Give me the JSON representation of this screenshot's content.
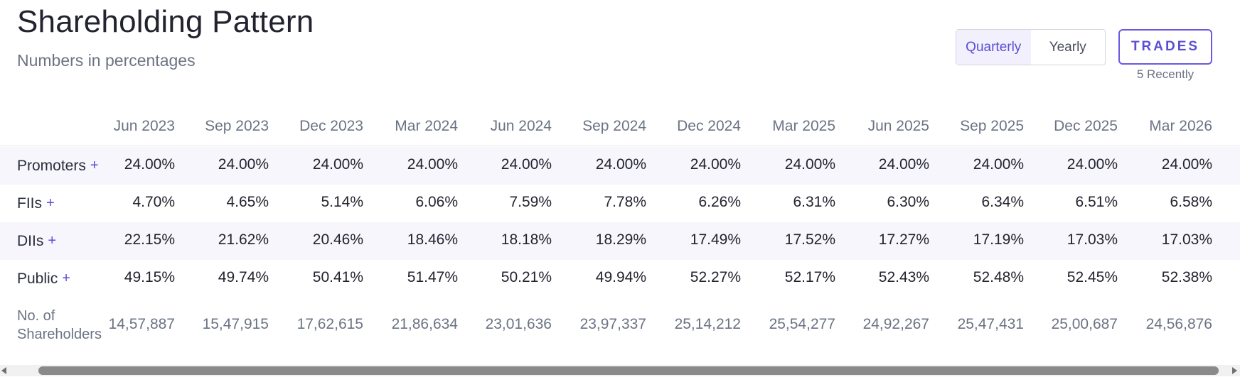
{
  "header": {
    "title": "Shareholding Pattern",
    "subtitle": "Numbers in percentages"
  },
  "period_toggle": {
    "options": [
      "Quarterly",
      "Yearly"
    ],
    "selected": "Quarterly"
  },
  "trades": {
    "label": "TRADES",
    "caption": "5 Recently"
  },
  "table": {
    "columns": [
      "Jun 2023",
      "Sep 2023",
      "Dec 2023",
      "Mar 2024",
      "Jun 2024",
      "Sep 2024",
      "Dec 2024",
      "Mar 2025",
      "Jun 2025",
      "Sep 2025",
      "Dec 2025",
      "Mar 2026"
    ],
    "rows": [
      {
        "label": "Promoters",
        "plus": "+",
        "values": [
          "24.00%",
          "24.00%",
          "24.00%",
          "24.00%",
          "24.00%",
          "24.00%",
          "24.00%",
          "24.00%",
          "24.00%",
          "24.00%",
          "24.00%",
          "24.00%"
        ]
      },
      {
        "label": "FIIs",
        "plus": "+",
        "values": [
          "4.70%",
          "4.65%",
          "5.14%",
          "6.06%",
          "7.59%",
          "7.78%",
          "6.26%",
          "6.31%",
          "6.30%",
          "6.34%",
          "6.51%",
          "6.58%"
        ]
      },
      {
        "label": "DIIs",
        "plus": "+",
        "values": [
          "22.15%",
          "21.62%",
          "20.46%",
          "18.46%",
          "18.18%",
          "18.29%",
          "17.49%",
          "17.52%",
          "17.27%",
          "17.19%",
          "17.03%",
          "17.03%"
        ]
      },
      {
        "label": "Public",
        "plus": "+",
        "values": [
          "49.15%",
          "49.74%",
          "50.41%",
          "51.47%",
          "50.21%",
          "49.94%",
          "52.27%",
          "52.17%",
          "52.43%",
          "52.48%",
          "52.45%",
          "52.38%"
        ]
      }
    ],
    "shareholders": {
      "label_line1": "No. of",
      "label_line2": "Shareholders",
      "values": [
        "14,57,887",
        "15,47,915",
        "17,62,615",
        "21,86,634",
        "23,01,636",
        "23,97,337",
        "25,14,212",
        "25,54,277",
        "24,92,267",
        "25,47,431",
        "25,00,687",
        "24,56,876"
      ]
    }
  },
  "colors": {
    "accent": "#5b4dd4",
    "row_shade": "#f6f6fc",
    "muted_text": "#6b7384"
  }
}
